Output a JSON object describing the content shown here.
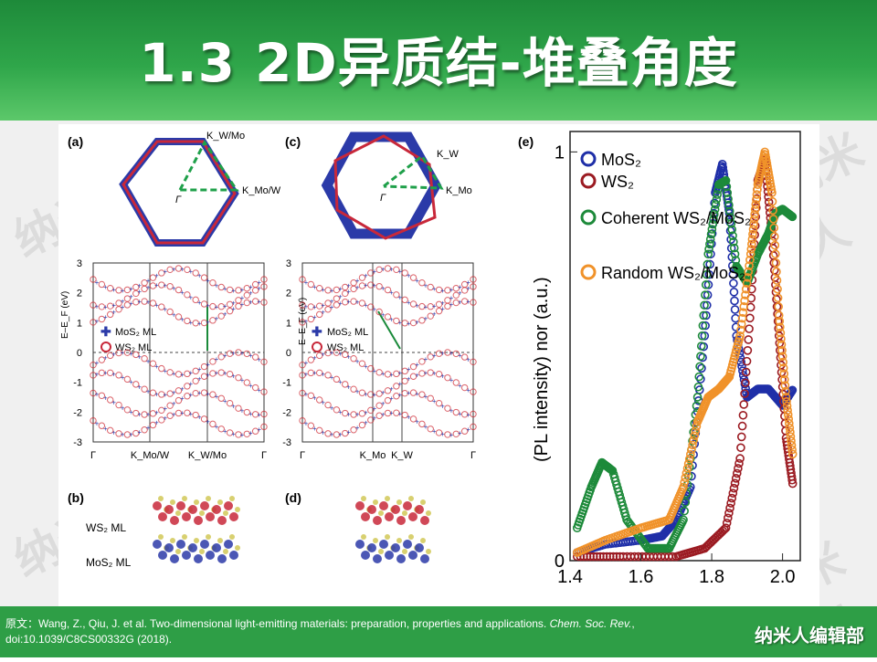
{
  "slide": {
    "title": "1.3 2D异质结-堆叠角度"
  },
  "watermark": "纳米人",
  "footer": {
    "citation_prefix": "原文：Wang, Z., Qiu, J. et al. Two-dimensional light-emitting materials: preparation, properties and applications. ",
    "citation_journal": "Chem. Soc. Rev.",
    "citation_suffix": ", doi:10.1039/C8CS00332G (2018).",
    "brand": "纳米人编辑部"
  },
  "figure": {
    "panel_a": {
      "label": "(a)",
      "bz_labels": [
        "K_W/Mo",
        "K_Mo/W",
        "Γ"
      ],
      "ylabel": "E–E_F (eV)",
      "legend": [
        "MoS₂ ML",
        "WS₂ ML"
      ],
      "x_ticks": [
        "Γ",
        "K_Mo/W",
        "K_W/Mo",
        "Γ"
      ],
      "y_ticks": [
        "3",
        "2",
        "1",
        "0",
        "-1",
        "-2",
        "-3"
      ]
    },
    "panel_c": {
      "label": "(c)",
      "bz_labels": [
        "K_W",
        "K_Mo",
        "Γ"
      ],
      "ylabel": "E–E_F (eV)",
      "legend": [
        "MoS₂ ML",
        "WS₂ ML"
      ],
      "x_ticks": [
        "Γ",
        "K_Mo",
        "K_W",
        "Γ"
      ],
      "y_ticks": [
        "3",
        "2",
        "1",
        "0",
        "-1",
        "-2",
        "-3"
      ]
    },
    "panel_b": {
      "label": "(b)",
      "layer_labels": [
        "WS₂ ML",
        "MoS₂ ML"
      ]
    },
    "panel_d": {
      "label": "(d)"
    },
    "panel_e": {
      "label": "(e)"
    }
  },
  "chart_data": {
    "type": "line",
    "ylabel": "(PL intensity) nor (a.u.)",
    "xlim": [
      1.4,
      2.05
    ],
    "ylim": [
      0,
      1.05
    ],
    "x_ticks": [
      "1.4",
      "1.6",
      "1.8",
      "2.0"
    ],
    "y_ticks": [
      "0",
      "1"
    ],
    "series": [
      {
        "name": "MoS₂",
        "color": "#1f2fa8",
        "x": [
          1.42,
          1.5,
          1.6,
          1.66,
          1.7,
          1.74,
          1.78,
          1.81,
          1.83,
          1.85,
          1.87,
          1.9,
          1.93,
          1.96,
          2.0,
          2.03
        ],
        "y": [
          0.02,
          0.04,
          0.05,
          0.06,
          0.1,
          0.18,
          0.55,
          0.9,
          0.97,
          0.85,
          0.55,
          0.4,
          0.42,
          0.42,
          0.38,
          0.42
        ]
      },
      {
        "name": "WS₂",
        "color": "#9b1b22",
        "x": [
          1.42,
          1.55,
          1.7,
          1.78,
          1.84,
          1.88,
          1.91,
          1.93,
          1.95,
          1.97,
          1.99,
          2.01,
          2.03
        ],
        "y": [
          0.01,
          0.01,
          0.01,
          0.03,
          0.08,
          0.25,
          0.62,
          0.93,
          0.98,
          0.8,
          0.55,
          0.3,
          0.18
        ]
      },
      {
        "name": "Coherent WS₂/MoS₂",
        "color": "#1d8a3a",
        "x": [
          1.42,
          1.46,
          1.49,
          1.52,
          1.56,
          1.62,
          1.68,
          1.72,
          1.76,
          1.79,
          1.82,
          1.84,
          1.87,
          1.9,
          1.93,
          1.96,
          1.98,
          2.0,
          2.03
        ],
        "y": [
          0.08,
          0.18,
          0.24,
          0.22,
          0.1,
          0.03,
          0.03,
          0.1,
          0.4,
          0.75,
          0.92,
          0.93,
          0.72,
          0.68,
          0.75,
          0.8,
          0.85,
          0.86,
          0.84
        ]
      },
      {
        "name": "Random WS₂/MoS₂",
        "color": "#f0922a",
        "x": [
          1.42,
          1.5,
          1.6,
          1.68,
          1.72,
          1.76,
          1.79,
          1.82,
          1.85,
          1.88,
          1.91,
          1.93,
          1.95,
          1.97,
          1.99,
          2.01,
          2.03
        ],
        "y": [
          0.02,
          0.05,
          0.08,
          0.1,
          0.18,
          0.34,
          0.4,
          0.42,
          0.45,
          0.55,
          0.75,
          0.92,
          1.0,
          0.9,
          0.6,
          0.4,
          0.25
        ]
      }
    ]
  }
}
